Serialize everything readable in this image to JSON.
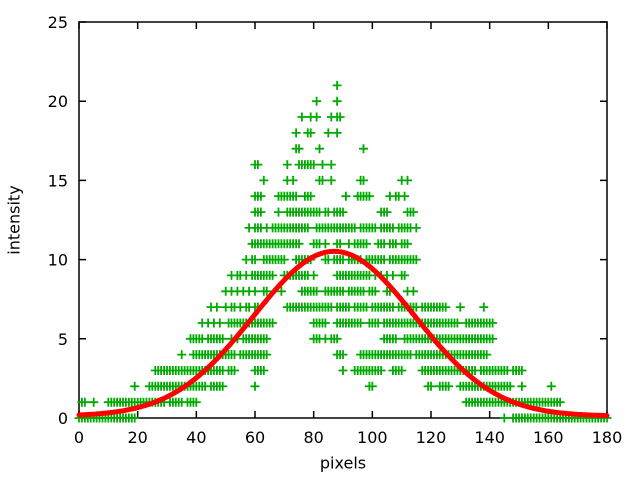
{
  "figure": {
    "background_color": "#ffffff",
    "text_color": "#000000"
  },
  "chart_data": {
    "type": "scatter",
    "title": "",
    "xlabel": "pixels",
    "ylabel": "intensity",
    "xlim": [
      0,
      180
    ],
    "ylim": [
      0,
      25
    ],
    "xticks": [
      0,
      20,
      40,
      60,
      80,
      100,
      120,
      140,
      160,
      180
    ],
    "yticks": [
      0,
      5,
      10,
      15,
      20,
      25
    ],
    "grid": false,
    "legend": "none",
    "border": "full-box-mirrored-inward-ticks",
    "series": [
      {
        "name": "measured-intensity-points",
        "type": "points",
        "marker": "plus",
        "color": "#00aa00",
        "rows": [
          {
            "y": 21,
            "x": [
              "88"
            ]
          },
          {
            "y": 20,
            "x": [
              "81",
              "88"
            ]
          },
          {
            "y": 19,
            "x": [
              "76",
              "79",
              "81",
              "86",
              "88",
              "89"
            ]
          },
          {
            "y": 18,
            "x": [
              "74",
              "78",
              "79",
              "85",
              "88"
            ]
          },
          {
            "y": 17,
            "x": [
              "74",
              "75",
              "82",
              "97"
            ]
          },
          {
            "y": 16,
            "x": [
              "60",
              "61",
              "71",
              "75-80",
              "83",
              "86"
            ]
          },
          {
            "y": 15,
            "x": [
              "63",
              "71",
              "73",
              "82",
              "83",
              "86",
              "96",
              "97",
              "110",
              "112"
            ]
          },
          {
            "y": 14,
            "x": [
              "60-62",
              "68-74",
              "77-79",
              "91",
              "95-99",
              "106",
              "108",
              "109",
              "111"
            ]
          },
          {
            "y": 13,
            "x": [
              "60-62",
              "68",
              "71-82",
              "84",
              "85",
              "87-90",
              "103-105",
              "112-114"
            ]
          },
          {
            "y": 12,
            "x": [
              "58",
              "60-62",
              "64",
              "66-78",
              "81-94",
              "96-101",
              "103-107",
              "109-113",
              "115"
            ]
          },
          {
            "y": 11,
            "x": [
              "59",
              "60-75",
              "80-82",
              "84",
              "88",
              "89",
              "92",
              "94-98",
              "102-104",
              "106-108",
              "110-112"
            ]
          },
          {
            "y": 10,
            "x": [
              "57",
              "59",
              "60",
              "63-70",
              "74-79",
              "84",
              "85",
              "87-90",
              "92-96",
              "98-104",
              "106-115"
            ]
          },
          {
            "y": 9,
            "x": [
              "52",
              "54",
              "55",
              "57",
              "59",
              "60-66",
              "70-78",
              "80",
              "88-99",
              "101",
              "103",
              "105",
              "107",
              "110",
              "111"
            ]
          },
          {
            "y": 8,
            "x": [
              "50",
              "52",
              "54",
              "56",
              "58",
              "60",
              "63",
              "64",
              "69",
              "76-81",
              "84-90",
              "92-97",
              "99-101",
              "105",
              "106",
              "112",
              "114"
            ]
          },
          {
            "y": 7,
            "x": [
              "45",
              "47",
              "50",
              "52",
              "53",
              "55",
              "57",
              "58",
              "60",
              "61",
              "71-86",
              "88-92",
              "94-98",
              "100-107",
              "109-115",
              "117-125",
              "130",
              "138"
            ]
          },
          {
            "y": 6,
            "x": [
              "42",
              "44",
              "46",
              "48",
              "51-66",
              "80-84",
              "88-96",
              "99-102",
              "104-129",
              "132-141"
            ]
          },
          {
            "y": 5,
            "x": [
              "38-42",
              "44-49",
              "52",
              "54",
              "56-64",
              "80-82",
              "84",
              "86-88",
              "104-108",
              "111-141"
            ]
          },
          {
            "y": 4,
            "x": [
              "35",
              "39-53",
              "55-64",
              "88-90",
              "96-113",
              "115-139"
            ]
          },
          {
            "y": 3,
            "x": [
              "26-49",
              "51-53",
              "60-63",
              "90",
              "94-103",
              "107-110",
              "117-135",
              "137-146",
              "148-151"
            ]
          },
          {
            "y": 2,
            "x": [
              "19",
              "24-43",
              "45-49",
              "60",
              "99",
              "100",
              "119",
              "120",
              "123-126",
              "130-147",
              "151",
              "161"
            ]
          },
          {
            "y": 1,
            "x": [
              "1",
              "2",
              "5",
              "10-29",
              "31-35",
              "37-40",
              "132-164"
            ]
          },
          {
            "y": 0,
            "x": [
              "0-19",
              "145",
              "148-180"
            ]
          }
        ]
      },
      {
        "name": "gaussian-fit-curve",
        "type": "line",
        "color": "#ff0000",
        "line_width": 5,
        "gaussian": {
          "amplitude": 10.4,
          "center": 87,
          "sigma": 27.5,
          "baseline": 0.12
        }
      }
    ]
  }
}
